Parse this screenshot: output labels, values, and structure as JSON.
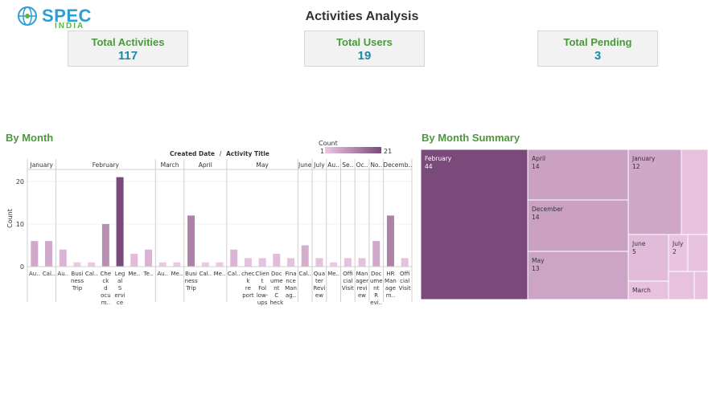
{
  "header": {
    "logo_main": "SPEC",
    "logo_sub": "INDIA",
    "title": "Activities Analysis"
  },
  "kpis": [
    {
      "label": "Total Activities",
      "value": "117"
    },
    {
      "label": "Total Users",
      "value": "19"
    },
    {
      "label": "Total Pending",
      "value": "3"
    }
  ],
  "sections": {
    "by_month": "By Month",
    "summary": "By Month Summary"
  },
  "legend": {
    "title": "Count",
    "min": "1",
    "max": "21"
  },
  "colors": {
    "low": "#ecc7e3",
    "high": "#7a4a7a",
    "accent_green": "#4a9a3a",
    "kpi_value": "#1b8aa6"
  },
  "chart_data": [
    {
      "type": "bar",
      "title": "",
      "header_labels": [
        "Created Date",
        "Activity Title"
      ],
      "ylabel": "Count",
      "ylim": [
        0,
        23
      ],
      "yticks": [
        0,
        10,
        20
      ],
      "groups": [
        {
          "month": "January",
          "bars": [
            {
              "label": "Au..",
              "value": 6
            },
            {
              "label": "Cal..",
              "value": 6
            }
          ]
        },
        {
          "month": "February",
          "bars": [
            {
              "label": "Au..",
              "value": 4
            },
            {
              "label": "Busi ness Trip",
              "value": 1
            },
            {
              "label": "Cal..",
              "value": 1
            },
            {
              "label": "Che ck d ocu m..",
              "value": 10
            },
            {
              "label": "Leg al S ervi ce",
              "value": 21
            },
            {
              "label": "Me..",
              "value": 3
            },
            {
              "label": "Te..",
              "value": 4
            }
          ]
        },
        {
          "month": "March",
          "bars": [
            {
              "label": "Au..",
              "value": 1
            },
            {
              "label": "Me..",
              "value": 1
            }
          ]
        },
        {
          "month": "April",
          "bars": [
            {
              "label": "Busi ness Trip",
              "value": 12
            },
            {
              "label": "Cal..",
              "value": 1
            },
            {
              "label": "Me..",
              "value": 1
            }
          ]
        },
        {
          "month": "May",
          "bars": [
            {
              "label": "Cal..",
              "value": 4
            },
            {
              "label": "chec k re port",
              "value": 2
            },
            {
              "label": "Clien t Fol low- ups",
              "value": 2
            },
            {
              "label": "Doc ume nt C heck",
              "value": 3
            },
            {
              "label": "Fina nce Man ag..",
              "value": 2
            }
          ]
        },
        {
          "month": "June",
          "bars": [
            {
              "label": "Cal..",
              "value": 5
            }
          ]
        },
        {
          "month": "July",
          "bars": [
            {
              "label": "Qua ter Revi ew",
              "value": 2
            }
          ]
        },
        {
          "month": "Au..",
          "bars": [
            {
              "label": "Me..",
              "value": 1
            }
          ]
        },
        {
          "month": "Se..",
          "bars": [
            {
              "label": "Offi cial Visit",
              "value": 2
            }
          ]
        },
        {
          "month": "Oc..",
          "bars": [
            {
              "label": "Man ager revi ew",
              "value": 2
            }
          ]
        },
        {
          "month": "No..",
          "bars": [
            {
              "label": "Doc ume nt R evi..",
              "value": 6
            }
          ]
        },
        {
          "month": "Decemb..",
          "bars": [
            {
              "label": "HR Man age m..",
              "value": 12
            },
            {
              "label": "Offi cial Visit",
              "value": 2
            }
          ]
        }
      ]
    },
    {
      "type": "treemap",
      "title": "",
      "items": [
        {
          "name": "February",
          "value": 44
        },
        {
          "name": "April",
          "value": 14
        },
        {
          "name": "December",
          "value": 14
        },
        {
          "name": "May",
          "value": 13
        },
        {
          "name": "January",
          "value": 12
        },
        {
          "name": "June",
          "value": 5
        },
        {
          "name": "July",
          "value": 2
        },
        {
          "name": "March",
          "value": null
        },
        {
          "name": "",
          "value": null
        },
        {
          "name": "",
          "value": null
        },
        {
          "name": "",
          "value": null
        },
        {
          "name": "",
          "value": null
        },
        {
          "name": "",
          "value": null
        }
      ]
    }
  ]
}
